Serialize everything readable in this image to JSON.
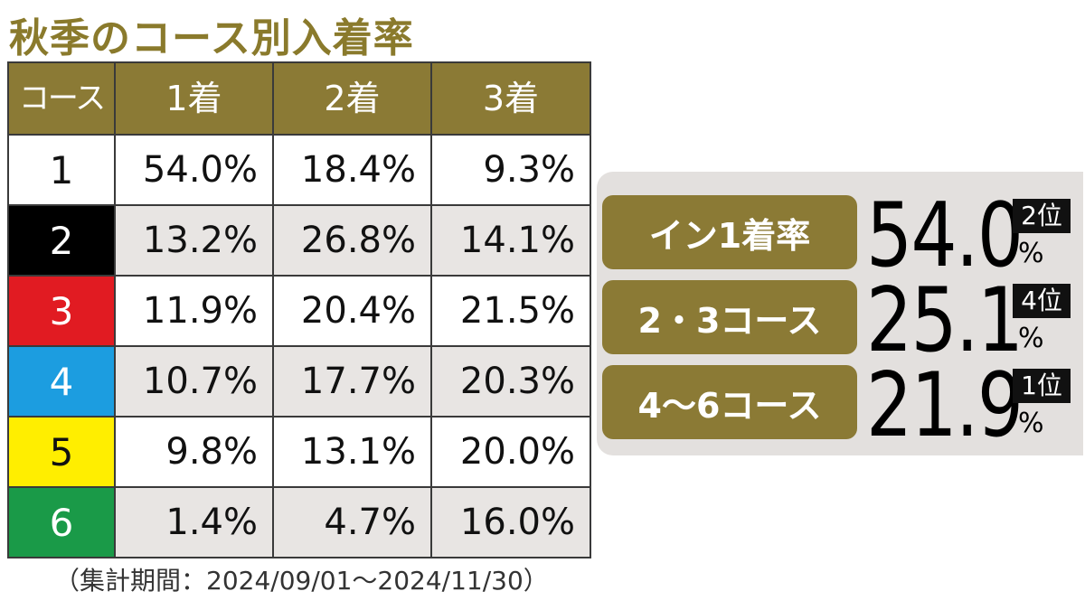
{
  "title": "秋季のコース別入着率",
  "table": {
    "headers": [
      "コース",
      "1着",
      "2着",
      "3着"
    ],
    "rows": [
      {
        "course": "1",
        "course_color": "#ffffff",
        "course_text_color": "#111111",
        "v1": "54.0%",
        "v2": "18.4%",
        "v3": "9.3%"
      },
      {
        "course": "2",
        "course_color": "#000000",
        "course_text_color": "#ffffff",
        "v1": "13.2%",
        "v2": "26.8%",
        "v3": "14.1%"
      },
      {
        "course": "3",
        "course_color": "#e11b22",
        "course_text_color": "#ffffff",
        "v1": "11.9%",
        "v2": "20.4%",
        "v3": "21.5%"
      },
      {
        "course": "4",
        "course_color": "#1c9de0",
        "course_text_color": "#ffffff",
        "v1": "10.7%",
        "v2": "17.7%",
        "v3": "20.3%"
      },
      {
        "course": "5",
        "course_color": "#ffee00",
        "course_text_color": "#111111",
        "v1": "9.8%",
        "v2": "13.1%",
        "v3": "20.0%"
      },
      {
        "course": "6",
        "course_color": "#1a9a48",
        "course_text_color": "#ffffff",
        "v1": "1.4%",
        "v2": "4.7%",
        "v3": "16.0%"
      }
    ]
  },
  "footnote": "（集計期間：2024/09/01〜2024/11/30）",
  "summary": [
    {
      "label": "イン1着率",
      "value": "54.0",
      "unit": "%",
      "rank": "2位"
    },
    {
      "label": "2・3コース",
      "value": "25.1",
      "unit": "%",
      "rank": "4位"
    },
    {
      "label": "4〜6コース",
      "value": "21.9",
      "unit": "%",
      "rank": "1位"
    }
  ],
  "colors": {
    "accent": "#8b7a35",
    "title": "#8a7a2c",
    "panel": "#e3e0de"
  },
  "chart_data": {
    "type": "table",
    "title": "秋季のコース別入着率",
    "columns": [
      "コース",
      "1着",
      "2着",
      "3着"
    ],
    "rows": [
      [
        "1",
        54.0,
        18.4,
        9.3
      ],
      [
        "2",
        13.2,
        26.8,
        14.1
      ],
      [
        "3",
        11.9,
        20.4,
        21.5
      ],
      [
        "4",
        10.7,
        17.7,
        20.3
      ],
      [
        "5",
        9.8,
        13.1,
        20.0
      ],
      [
        "6",
        1.4,
        4.7,
        16.0
      ]
    ],
    "summary": [
      {
        "label": "イン1着率",
        "value": 54.0,
        "rank": "2位"
      },
      {
        "label": "2・3コース",
        "value": 25.1,
        "rank": "4位"
      },
      {
        "label": "4〜6コース",
        "value": 21.9,
        "rank": "1位"
      }
    ]
  }
}
